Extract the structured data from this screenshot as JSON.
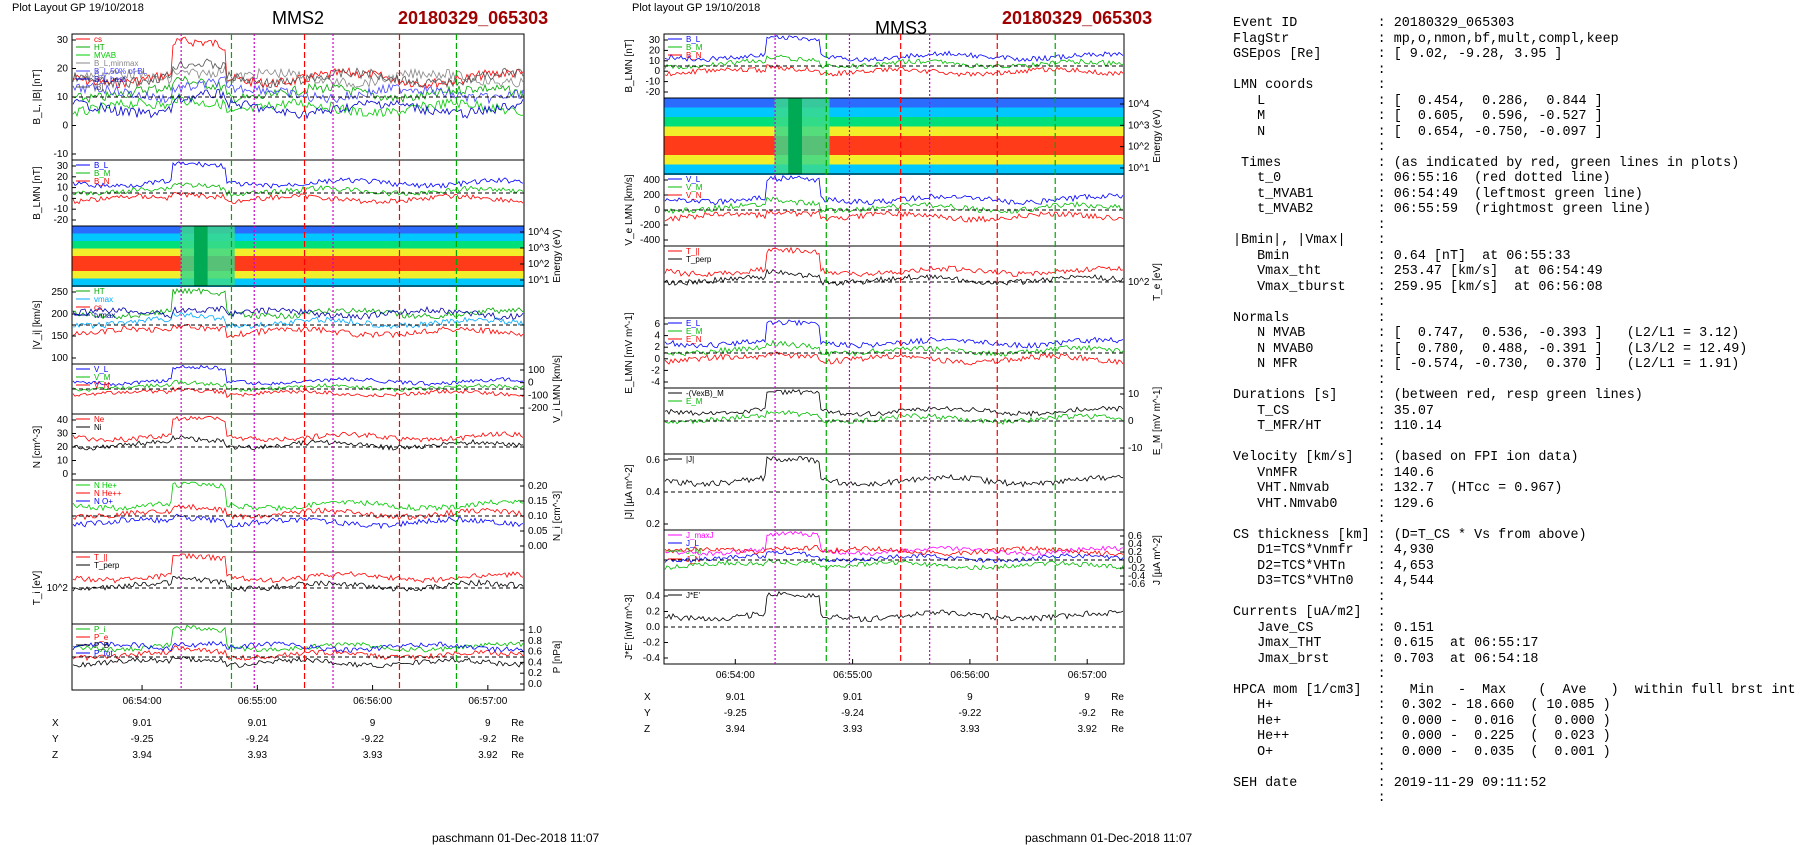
{
  "left": {
    "header": {
      "layout": "Plot Layout GP 19/10/2018",
      "sc": "MMS2",
      "event": "20180329_065303"
    },
    "xticks": [
      "06:54:00",
      "06:55:00",
      "06:56:00",
      "06:57:00"
    ],
    "footer": "paschmann 01-Dec-2018 11:07",
    "pos_table": {
      "labels": [
        "X",
        "Y",
        "Z"
      ],
      "rows": [
        [
          "9.01",
          "9.01",
          "9",
          "9"
        ],
        [
          "-9.25",
          "-9.24",
          "-9.22",
          "-9.2"
        ],
        [
          "3.94",
          "3.93",
          "3.93",
          "3.92"
        ]
      ],
      "unit": "Re"
    },
    "panels": [
      {
        "ylabel": "B_L, |B| [nT]",
        "ticks_left": [
          "30",
          "20",
          "10",
          "0",
          "-10"
        ],
        "legend": [
          "cs",
          "HT",
          "MVAB",
          "B_L,minmax",
          "B_L 50% of BL",
          "B_L best",
          "|B|"
        ],
        "legend_colors": [
          "#ff0000",
          "#00aa00",
          "#00cc00",
          "#888888",
          "#4444ff",
          "#0000cc",
          "#555555"
        ]
      },
      {
        "ylabel": "B_LMN [nT]",
        "ticks_left": [
          "30",
          "20",
          "10",
          "0",
          "-10",
          "-20"
        ],
        "legend": [
          "B_L",
          "B_M",
          "B_N"
        ],
        "legend_colors": [
          "#0000ff",
          "#00bb00",
          "#ff0000"
        ]
      },
      {
        "ylabel": "Energy (eV)",
        "ticks_right": [
          "10^4",
          "10^3",
          "10^2",
          "10^1"
        ]
      },
      {
        "ylabel": "|V_i| [km/s]",
        "ticks_left": [
          "250",
          "200",
          "150",
          "100"
        ],
        "legend": [
          "HT",
          "vmax",
          "cs",
          "tvmax"
        ],
        "legend_colors": [
          "#00aa00",
          "#00aaff",
          "#ff0000",
          "#0000aa"
        ]
      },
      {
        "ylabel": "V_i LMN [km/s]",
        "ticks_right": [
          "100",
          "0",
          "-100",
          "-200"
        ],
        "legend": [
          "V_L",
          "V_M",
          "V_N"
        ],
        "legend_colors": [
          "#0000ff",
          "#00bb00",
          "#ff0000"
        ]
      },
      {
        "ylabel": "N [cm^-3]",
        "ticks_left": [
          "40",
          "30",
          "20",
          "10",
          "0"
        ],
        "legend": [
          "Ne",
          "Ni"
        ],
        "legend_colors": [
          "#ff0000",
          "#000000"
        ]
      },
      {
        "ylabel": "N_i [cm^-3]",
        "ticks_right": [
          "0.20",
          "0.15",
          "0.10",
          "0.05",
          "0.00"
        ],
        "legend": [
          "N He+",
          "N He++",
          "N O+"
        ],
        "legend_colors": [
          "#00cc00",
          "#ff0000",
          "#0000ff"
        ]
      },
      {
        "ylabel": "T_i [eV]",
        "ticks_left": [
          "10^2"
        ],
        "legend": [
          "T_||",
          "T_perp"
        ],
        "legend_colors": [
          "#ff0000",
          "#000000"
        ]
      },
      {
        "ylabel": "P [nPa]",
        "ticks_right": [
          "1.0",
          "0.8",
          "0.6",
          "0.4",
          "0.2",
          "0.0"
        ],
        "legend": [
          "P_i",
          "P_e",
          "P_B",
          "P_tot"
        ],
        "legend_colors": [
          "#00bb00",
          "#ff0000",
          "#000000",
          "#0000ff"
        ]
      }
    ]
  },
  "middle": {
    "header": {
      "layout": "Plot layout GP 19/10/2018",
      "sc": "MMS3",
      "event": "20180329_065303"
    },
    "xticks": [
      "06:54:00",
      "06:55:00",
      "06:56:00",
      "06:57:00"
    ],
    "footer": "paschmann 01-Dec-2018 11:07",
    "pos_table": {
      "labels": [
        "X",
        "Y",
        "Z"
      ],
      "rows": [
        [
          "9.01",
          "9.01",
          "9",
          "9"
        ],
        [
          "-9.25",
          "-9.24",
          "-9.22",
          "-9.2"
        ],
        [
          "3.94",
          "3.93",
          "3.93",
          "3.92"
        ]
      ],
      "unit": "Re"
    },
    "panels": [
      {
        "ylabel": "B_LMN [nT]",
        "ticks_left": [
          "30",
          "20",
          "10",
          "0",
          "-10",
          "-20"
        ],
        "legend": [
          "B_L",
          "B_M",
          "B_N"
        ],
        "legend_colors": [
          "#0000ff",
          "#00bb00",
          "#ff0000"
        ]
      },
      {
        "ylabel": "Energy (eV)",
        "ticks_right": [
          "10^4",
          "10^3",
          "10^2",
          "10^1"
        ]
      },
      {
        "ylabel": "V_e LMN [km/s]",
        "ticks_left": [
          "400",
          "200",
          "0",
          "-200",
          "-400"
        ],
        "legend": [
          "V_L",
          "V_M",
          "V_N"
        ],
        "legend_colors": [
          "#0000ff",
          "#00bb00",
          "#ff0000"
        ]
      },
      {
        "ylabel": "T_e [eV]",
        "ticks_right": [
          "10^2"
        ],
        "legend": [
          "T_||",
          "T_perp"
        ],
        "legend_colors": [
          "#ff0000",
          "#000000"
        ]
      },
      {
        "ylabel": "E_LMN [mV m^-1]",
        "ticks_left": [
          "6",
          "4",
          "2",
          "0",
          "-2",
          "-4"
        ],
        "legend": [
          "E_L",
          "E_M",
          "E_N"
        ],
        "legend_colors": [
          "#0000ff",
          "#00bb00",
          "#ff0000"
        ]
      },
      {
        "ylabel": "E_M [mV m^-1]",
        "ticks_right": [
          "10",
          "0",
          "-10"
        ],
        "legend": [
          "-(VexB)_M",
          "E_M"
        ],
        "legend_colors": [
          "#000000",
          "#00bb00"
        ]
      },
      {
        "ylabel": "|J| [µA m^-2]",
        "ticks_left": [
          "0.6",
          "0.4",
          "0.2"
        ],
        "legend": [
          "|J|"
        ],
        "legend_colors": [
          "#000000"
        ]
      },
      {
        "ylabel": "J [µA m^-2]",
        "ticks_right": [
          "0.6",
          "0.4",
          "0.2",
          "0.0",
          "-0.2",
          "-0.4",
          "-0.6"
        ],
        "legend": [
          "J_maxJ",
          "J_L",
          "J_M",
          "J_N"
        ],
        "legend_colors": [
          "#ff00ff",
          "#0000ff",
          "#00bb00",
          "#ff0000"
        ]
      },
      {
        "ylabel": "J*E' [nW m^-3]",
        "ticks_left": [
          "0.4",
          "0.2",
          "0.0",
          "-0.2",
          "-0.4"
        ],
        "legend": [
          "J*E'"
        ],
        "legend_colors": [
          "#000000"
        ]
      }
    ]
  },
  "info_lines": [
    "Event ID          : 20180329_065303",
    "FlagStr           : mp,o,nmon,bf,mult,compl,keep",
    "GSEpos [Re]       : [ 9.02, -9.28, 3.95 ]",
    "                  :",
    "LMN coords        :",
    "   L              : [  0.454,  0.286,  0.844 ]",
    "   M              : [  0.605,  0.596, -0.527 ]",
    "   N              : [  0.654, -0.750, -0.097 ]",
    "                  :",
    " Times            : (as indicated by red, green lines in plots)",
    "   t_0            : 06:55:16  (red dotted line)",
    "   t_MVAB1        : 06:54:49  (leftmost green line)",
    "   t_MVAB2        : 06:55:59  (rightmost green line)",
    "                  :",
    "|Bmin|, |Vmax|    :",
    "   Bmin           : 0.64 [nT]  at 06:55:33",
    "   Vmax_tht       : 253.47 [km/s]  at 06:54:49",
    "   Vmax_tburst    : 259.95 [km/s]  at 06:56:08",
    "                  :",
    "Normals           :",
    "   N MVAB         : [  0.747,  0.536, -0.393 ]   (L2/L1 = 3.12)",
    "   N MVAB0        : [  0.780,  0.488, -0.391 ]   (L3/L2 = 12.49)",
    "   N MFR          : [ -0.574, -0.730,  0.370 ]   (L2/L1 = 1.91)",
    "                  :",
    "Durations [s]     : (between red, resp green lines)",
    "   T_CS           : 35.07",
    "   T_MFR/HT       : 110.14",
    "                  :",
    "Velocity [km/s]   : (based on FPI ion data)",
    "   VnMFR          : 140.6",
    "   VHT.Nmvab      : 132.7  (HTcc = 0.967)",
    "   VHT.Nmvab0     : 129.6",
    "                  :",
    "CS thickness [km] : (D=T_CS * Vs from above)",
    "   D1=TCS*Vnmfr   : 4,930",
    "   D2=TCS*VHTn    : 4,653",
    "   D3=TCS*VHTn0   : 4,544",
    "                  :",
    "Currents [uA/m2]  :",
    "   Jave_CS        : 0.151",
    "   Jmax_THT       : 0.615  at 06:55:17",
    "   Jmax_brst      : 0.703  at 06:54:18",
    "                  :",
    "HPCA mom [1/cm3]  :   Min   -  Max    (  Ave   )  within full brst int",
    "   H+             :  0.302 - 18.660  ( 10.085 )",
    "   He+            :  0.000 -  0.016  (  0.000 )",
    "   He++           :  0.000 -  0.225  (  0.023 )",
    "   O+             :  0.000 -  0.035  (  0.001 )",
    "                  :",
    "SEH date          : 2019-11-29 09:11:52",
    "                  :"
  ],
  "chart_data": [
    {
      "type": "line",
      "title": "MMS2 20180329_065303",
      "xlabel": "",
      "x_ticks": [
        "06:54:00",
        "06:55:00",
        "06:56:00",
        "06:57:00"
      ],
      "panels": 9,
      "series": [
        {
          "name": "B_L",
          "approx_profile": "B_L rises from about -10 nT to about 33 nT near 06:54:45, drops back to about -10 nT after 06:55:05"
        },
        {
          "name": "|B|",
          "approx_profile": "about 15-20 nT with fluctuations, dip near 06:55:30"
        }
      ]
    },
    {
      "type": "line",
      "title": "MMS3 20180329_065303",
      "xlabel": "",
      "x_ticks": [
        "06:54:00",
        "06:55:00",
        "06:56:00",
        "06:57:00"
      ],
      "panels": 9,
      "series": [
        {
          "name": "|J|",
          "approx_profile": "background about 0.1-0.2 µA/m², spike about 0.6 near 06:54:18, quiet near 06:55:00, elevated after 06:55:10"
        }
      ]
    }
  ]
}
